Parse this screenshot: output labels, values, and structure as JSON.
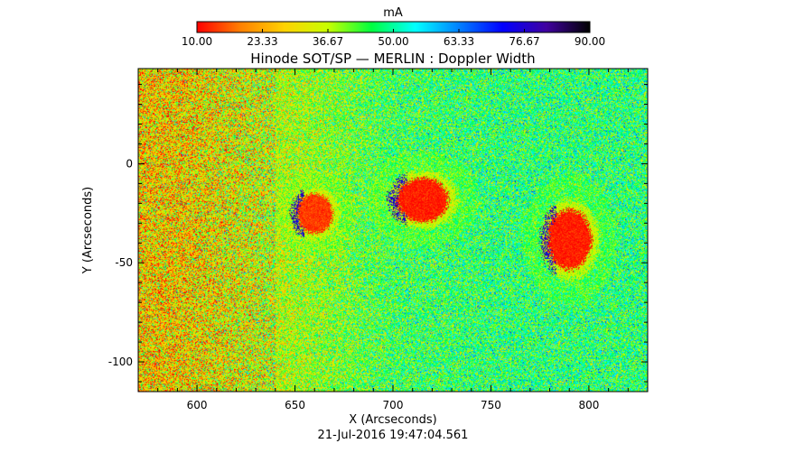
{
  "chart_data": {
    "type": "heatmap",
    "title": "Hinode SOT/SP — MERLIN : Doppler Width",
    "xlabel": "X (Arcseconds)",
    "ylabel": "Y (Arcseconds)",
    "timestamp": "21-Jul-2016 19:47:04.561",
    "xlim": [
      570,
      830
    ],
    "ylim": [
      -115,
      48
    ],
    "xticks": [
      600,
      650,
      700,
      750,
      800
    ],
    "yticks": [
      0,
      -50,
      -100
    ],
    "colorbar": {
      "label": "mA",
      "min": 10.0,
      "max": 90.0,
      "ticks": [
        "10.00",
        "23.33",
        "36.67",
        "50.00",
        "63.33",
        "76.67",
        "90.00"
      ],
      "colormap": [
        "#ff0000",
        "#ff8000",
        "#ffd200",
        "#c8ff00",
        "#00ff40",
        "#00ffff",
        "#0080ff",
        "#0000ff",
        "#4000a0",
        "#000000"
      ]
    },
    "field_values": {
      "east_background": 28,
      "central_background": 45,
      "west_background": 47
    },
    "features": [
      {
        "name": "small-spot",
        "x": 660,
        "y": -25,
        "value": 14
      },
      {
        "name": "central-spot",
        "x": 715,
        "y": -18,
        "value": 12
      },
      {
        "name": "western-spot",
        "x": 790,
        "y": -38,
        "value": 12
      }
    ]
  }
}
